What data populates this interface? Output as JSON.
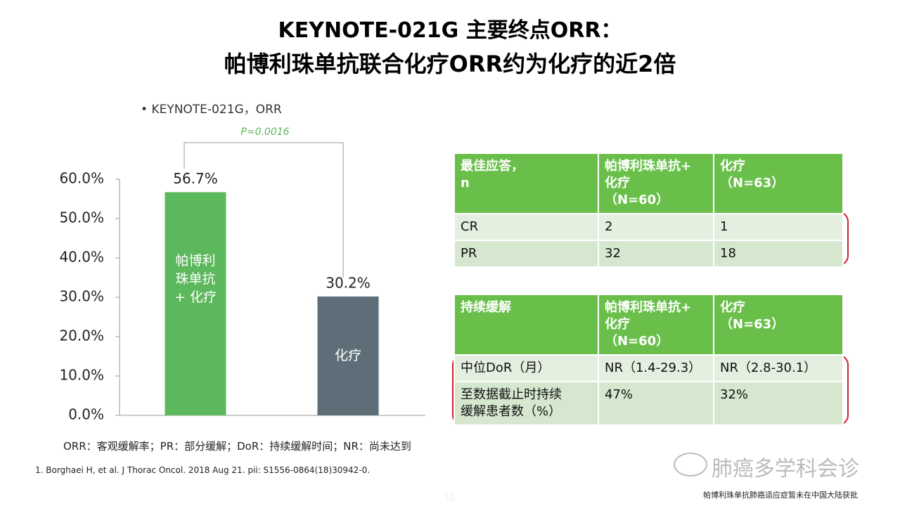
{
  "header": {
    "title": "KEYNOTE-021G 主要终点ORR：",
    "subtitle": "帕博利珠单抗联合化疗ORR约为化疗的近2倍"
  },
  "chart_data": {
    "type": "bar",
    "title": "• KEYNOTE-021G，ORR",
    "annotation": "P=0.0016",
    "categories": [
      "帕博利珠单抗 + 化疗",
      "化疗"
    ],
    "values": [
      56.7,
      30.2
    ],
    "value_labels": [
      "56.7%",
      "30.2%"
    ],
    "colors": [
      "#5cb85c",
      "#5e6e78"
    ],
    "ylim": [
      0,
      60
    ],
    "yticks": [
      {
        "value": 0,
        "label": "0.0%"
      },
      {
        "value": 10,
        "label": "10.0%"
      },
      {
        "value": 20,
        "label": "20.0%"
      },
      {
        "value": 30,
        "label": "30.0%"
      },
      {
        "value": 40,
        "label": "40.0%"
      },
      {
        "value": 50,
        "label": "50.0%"
      },
      {
        "value": 60,
        "label": "60.0%"
      }
    ]
  },
  "tables": [
    {
      "header": [
        "最佳应答，\nn",
        "帕博利珠单抗+\n化疗\n  （N=60）",
        "化疗\n  （N=63）"
      ],
      "rows": [
        [
          "CR",
          "2",
          "1"
        ],
        [
          "PR",
          "32",
          "18"
        ]
      ]
    },
    {
      "header": [
        "持续缓解",
        "帕博利珠单抗+\n化疗\n  （N=60）",
        "化疗\n  （N=63）"
      ],
      "rows": [
        [
          "中位DoR（月）",
          "NR（1.4-29.3）",
          "NR（2.8-30.1）"
        ],
        [
          "至数据截止时持续\n缓解患者数（%）",
          "47%",
          "32%"
        ]
      ]
    }
  ],
  "footnotes": {
    "abbreviations": "ORR：客观缓解率；PR：部分缓解；DoR：持续缓解时间；NR：尚未达到",
    "reference": "1.   Borghaei H, et al. J Thorac Oncol. 2018 Aug 21. pii: S1556-0864(18)30942-0."
  },
  "watermark": "肺癌多学科会诊",
  "disclaimer": "帕博利珠单抗肺癌适应症暂未在中国大陆获批",
  "page_number": "10"
}
